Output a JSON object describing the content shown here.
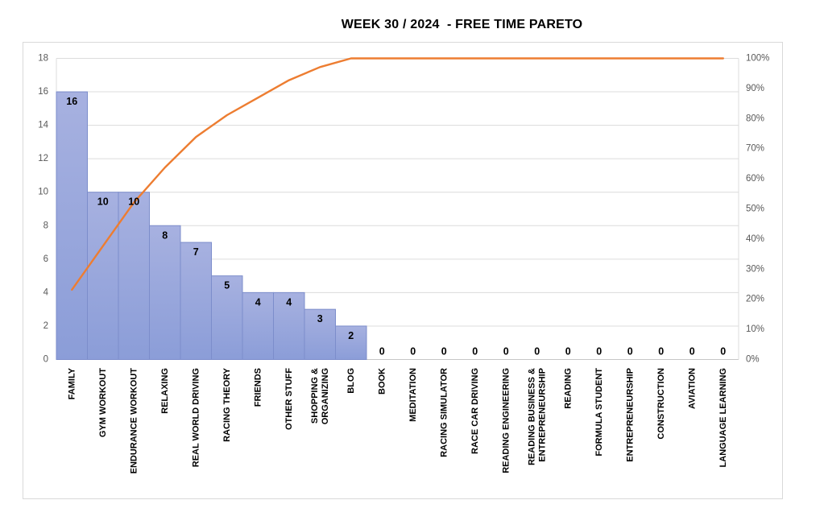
{
  "title": "WEEK 30 / 2024  - FREE TIME PARETO",
  "chart_data": {
    "type": "bar",
    "subtype": "pareto",
    "title": "WEEK 30 / 2024  - FREE TIME PARETO",
    "categories": [
      "FAMILY",
      "GYM WORKOUT",
      "ENDURANCE WORKOUT",
      "RELAXING",
      "REAL WORLD DRIVING",
      "RACING THEORY",
      "FRIENDS",
      "OTHER STUFF",
      "SHOPPING &\nORGANIZING",
      "BLOG",
      "BOOK",
      "MEDITATION",
      "RACING SIMULATOR",
      "RACE CAR DRIVING",
      "READING ENGINEERING",
      "READING BUSINESS &\nENTREPRENEURSHIP",
      "READING",
      "FORMULA STUDENT",
      "ENTREPRENEURSHIP",
      "CONSTRUCTION",
      "AVIATION",
      "LANGUAGE LEARNING"
    ],
    "series": [
      {
        "name": "hours-bars",
        "type": "bar",
        "values": [
          16,
          10,
          10,
          8,
          7,
          5,
          4,
          4,
          3,
          2,
          0,
          0,
          0,
          0,
          0,
          0,
          0,
          0,
          0,
          0,
          0,
          0
        ],
        "labels": [
          "16",
          "10",
          "10",
          "8",
          "7",
          "5",
          "4",
          "4",
          "3",
          "2",
          "0",
          "0",
          "0",
          "0",
          "0",
          "0",
          "0",
          "0",
          "0",
          "0",
          "0",
          "0"
        ]
      },
      {
        "name": "cumulative-percent-line",
        "type": "line",
        "values": [
          23.19,
          37.68,
          52.17,
          63.77,
          73.91,
          81.16,
          86.96,
          92.75,
          97.1,
          100,
          100,
          100,
          100,
          100,
          100,
          100,
          100,
          100,
          100,
          100,
          100,
          100
        ]
      }
    ],
    "xlabel": "",
    "ylabel": "",
    "left_axis": {
      "min": 0,
      "max": 18,
      "ticks": [
        "0",
        "2",
        "4",
        "6",
        "8",
        "10",
        "12",
        "14",
        "16",
        "18"
      ]
    },
    "right_axis": {
      "min_label": "0%",
      "max_label": "100%",
      "ticks": [
        "0%",
        "10%",
        "20%",
        "30%",
        "40%",
        "50%",
        "60%",
        "70%",
        "80%",
        "90%",
        "100%"
      ]
    },
    "grid": true,
    "legend_position": "none",
    "colors": {
      "bar_fill_top": "#a7b1e0",
      "bar_fill_bottom": "#8b9dd8",
      "bar_border": "#7c8dcb",
      "line": "#ed7d31",
      "gridline": "#dcdcdc",
      "axis_line": "#c6c6c6",
      "tick_text": "#595959",
      "label_text": "#000000",
      "frame_border": "#d9d9d9"
    }
  }
}
